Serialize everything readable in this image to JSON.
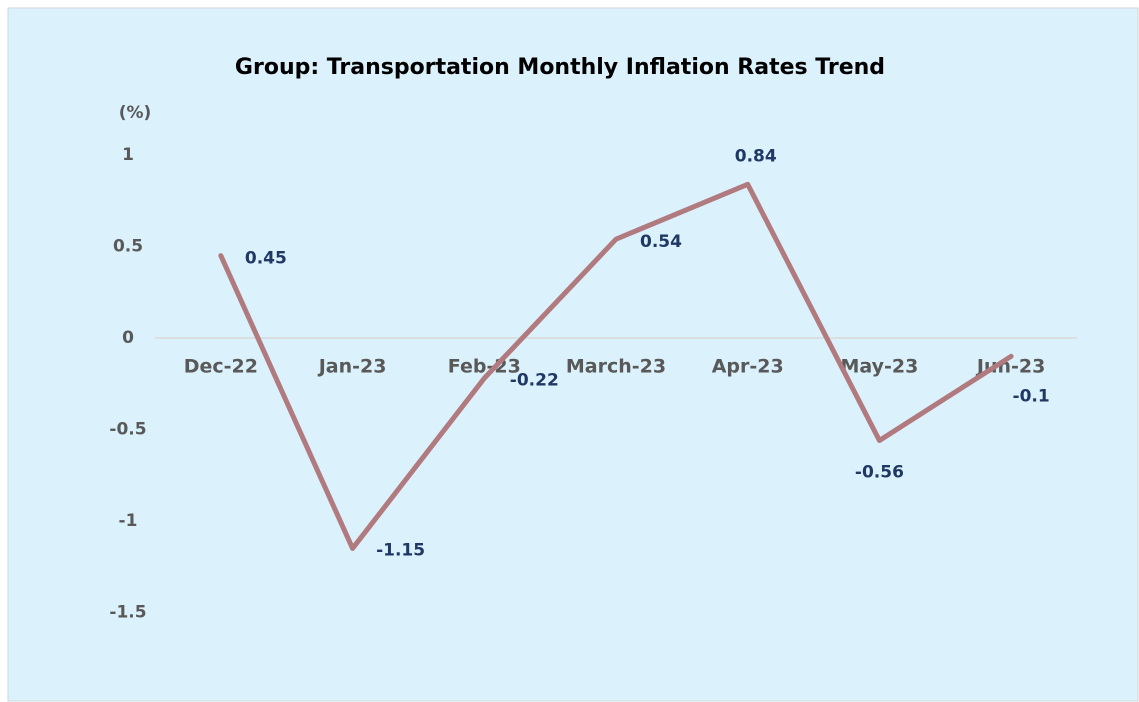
{
  "chart_data": {
    "type": "line",
    "title": "Group: Transportation Monthly Inflation Rates Trend",
    "y_label": "(%)",
    "categories": [
      "Dec-22",
      "Jan-23",
      "Feb-23",
      "March-23",
      "Apr-23",
      "May-23",
      "Jun-23"
    ],
    "values": [
      0.45,
      -1.15,
      -0.22,
      0.54,
      0.84,
      -0.56,
      -0.1
    ],
    "color": "#b07a7e",
    "ylim": [
      -1.5,
      1
    ],
    "yticks": [
      1,
      0.5,
      0,
      -0.5,
      -1,
      -1.5
    ]
  }
}
